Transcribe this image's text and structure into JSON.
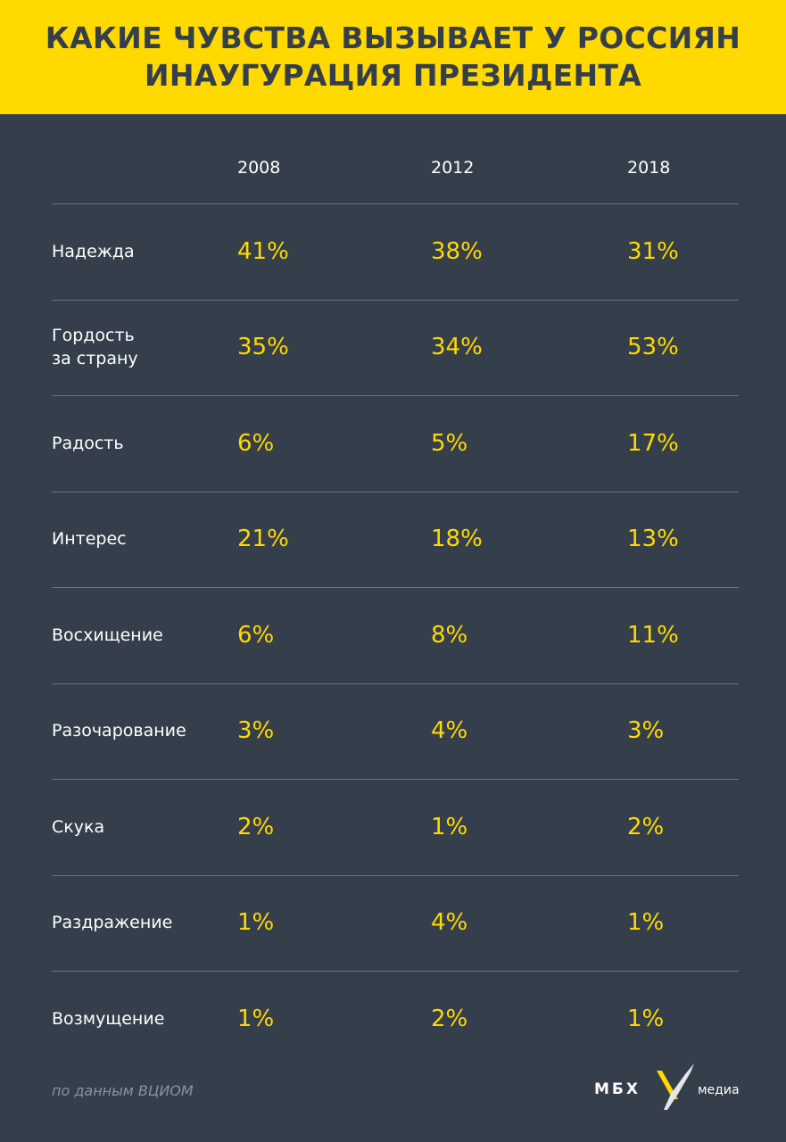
{
  "title": {
    "line1": "КАКИЕ ЧУВСТВА ВЫЗЫВАЕТ У РОССИЯН",
    "line2": "ИНАУГУРАЦИЯ ПРЕЗИДЕНТА"
  },
  "source": "по данным ВЦИОМ",
  "logo": {
    "left_text": "МБХ",
    "right_text": "медиа",
    "icon": "x-mark-icon"
  },
  "colors": {
    "background": "#343f4b",
    "accent": "#ffd900",
    "text": "#ffffff"
  },
  "chart_data": {
    "type": "table",
    "columns": [
      "2008",
      "2012",
      "2018"
    ],
    "rows": [
      {
        "label": [
          "Надежда"
        ],
        "values": [
          "41%",
          "38%",
          "31%"
        ]
      },
      {
        "label": [
          "Гордость",
          "за страну"
        ],
        "values": [
          "35%",
          "34%",
          "53%"
        ]
      },
      {
        "label": [
          "Радость"
        ],
        "values": [
          "6%",
          "5%",
          "17%"
        ]
      },
      {
        "label": [
          "Интерес"
        ],
        "values": [
          "21%",
          "18%",
          "13%"
        ]
      },
      {
        "label": [
          "Восхищение"
        ],
        "values": [
          "6%",
          "8%",
          "11%"
        ]
      },
      {
        "label": [
          "Разочарование"
        ],
        "values": [
          "3%",
          "4%",
          "3%"
        ]
      },
      {
        "label": [
          "Скука"
        ],
        "values": [
          "2%",
          "1%",
          "2%"
        ]
      },
      {
        "label": [
          "Раздражение"
        ],
        "values": [
          "1%",
          "4%",
          "1%"
        ]
      },
      {
        "label": [
          "Возмущение"
        ],
        "values": [
          "1%",
          "2%",
          "1%"
        ]
      }
    ]
  }
}
